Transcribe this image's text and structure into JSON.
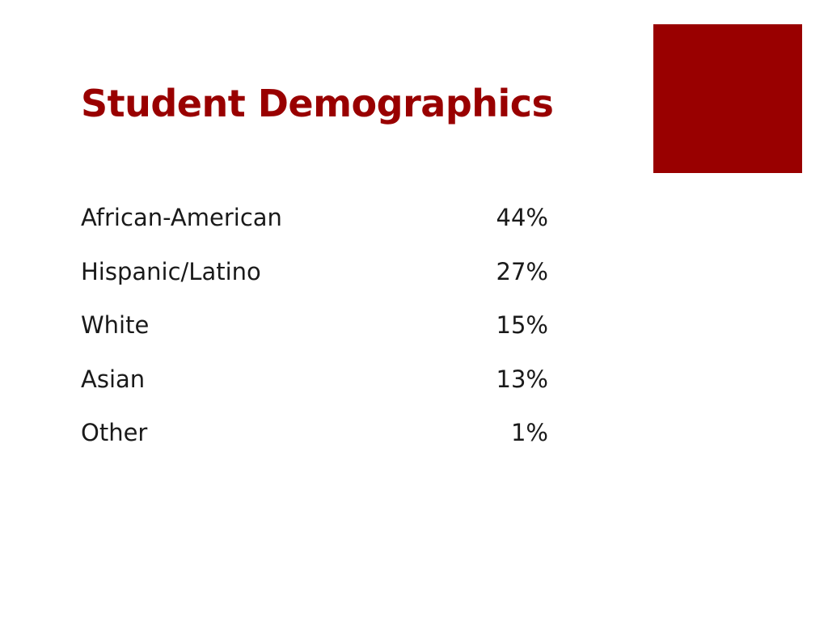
{
  "slide": {
    "title": "Student Demographics",
    "colors": {
      "accent": "#990000",
      "title": "#990000",
      "text": "#1a1a1a"
    },
    "rows": [
      {
        "label": "African-American",
        "value": "44%"
      },
      {
        "label": "Hispanic/Latino",
        "value": "27%"
      },
      {
        "label": "White",
        "value": "15%"
      },
      {
        "label": "Asian",
        "value": "13%"
      },
      {
        "label": "Other",
        "value": "1%"
      }
    ]
  }
}
